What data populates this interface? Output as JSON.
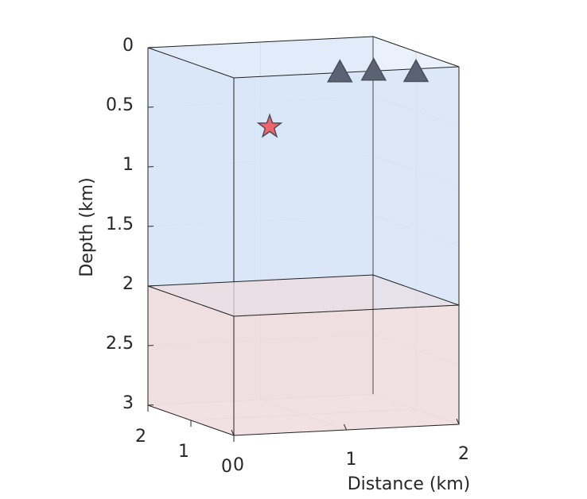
{
  "chart_data": {
    "type": "scatter3",
    "xlabel": "Distance (km)",
    "zlabel": "Depth (km)",
    "xlim": [
      0,
      2
    ],
    "ylim": [
      0,
      2
    ],
    "zlim": [
      0,
      3
    ],
    "xticks": [
      0,
      1,
      2
    ],
    "yticks": [
      0,
      1,
      2
    ],
    "zticks": [
      0,
      0.5,
      1,
      1.5,
      2,
      2.5,
      3
    ],
    "zdir": "reverse",
    "grid": true,
    "layers": [
      {
        "top": 0,
        "bottom": 2,
        "color": "#d6e4f7"
      },
      {
        "top": 2,
        "bottom": 3,
        "color": "#eedcdd"
      }
    ],
    "series": [
      {
        "marker": "triangle",
        "color": "#5b6373",
        "x": [
          1.4,
          1.7,
          2.0
        ],
        "y": [
          1.2,
          1.2,
          1.0
        ],
        "z": [
          0.17,
          0.17,
          0.17
        ]
      },
      {
        "marker": "star",
        "color": "#f2636d",
        "x": [
          0.7
        ],
        "y": [
          1.0
        ],
        "z": [
          0.57
        ]
      }
    ]
  }
}
